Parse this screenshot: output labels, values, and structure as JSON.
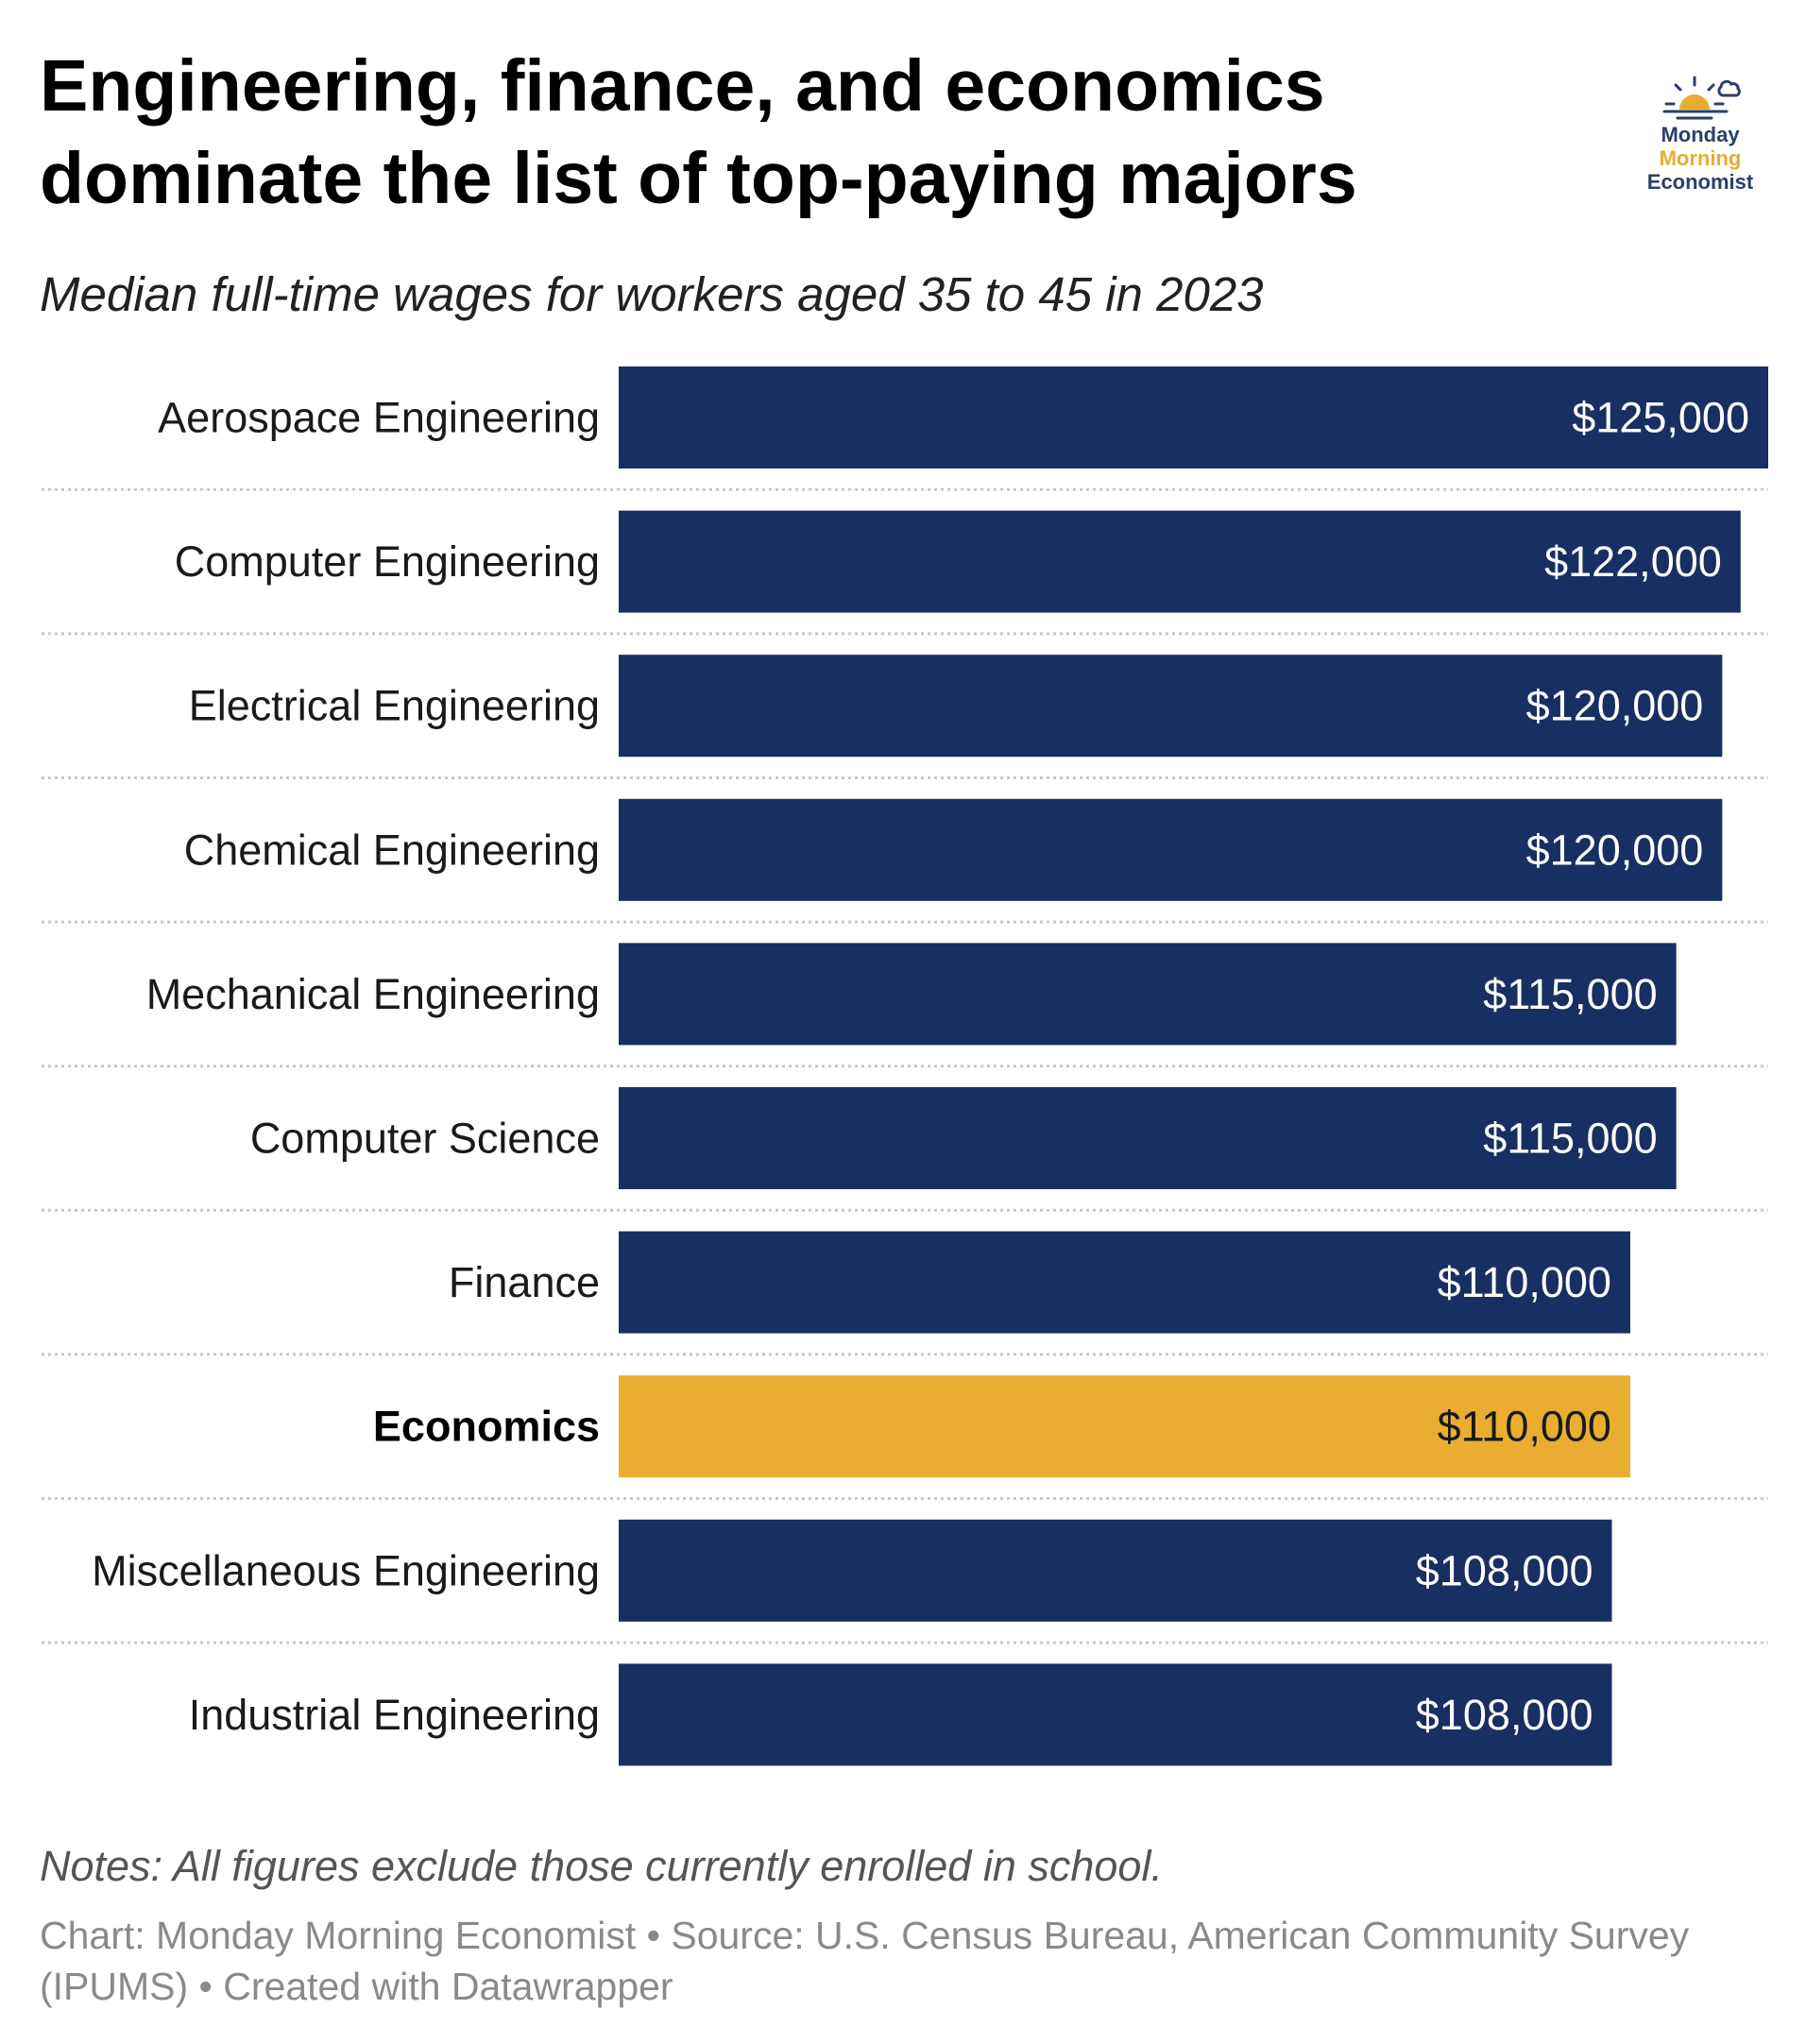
{
  "header": {
    "title": "Engineering, finance, and economics dominate the list of top-paying majors",
    "subtitle": "Median full-time wages for workers aged 35 to 45 in 2023"
  },
  "logo": {
    "line1": "Monday",
    "line2": "Morning",
    "line3": "Economist",
    "colors": {
      "navy": "#2b3f6b",
      "gold": "#e8ad2f"
    }
  },
  "footer": {
    "notes": "Notes: All figures exclude those currently enrolled in school.",
    "credit": "Chart: Monday Morning Economist • Source: U.S. Census Bureau, American Community Survey (IPUMS) • Created with Datawrapper"
  },
  "chart_data": {
    "type": "bar",
    "orientation": "horizontal",
    "categories": [
      "Aerospace Engineering",
      "Computer Engineering",
      "Electrical Engineering",
      "Chemical Engineering",
      "Mechanical Engineering",
      "Computer Science",
      "Finance",
      "Economics",
      "Miscellaneous Engineering",
      "Industrial Engineering"
    ],
    "values": [
      125000,
      122000,
      120000,
      120000,
      115000,
      115000,
      110000,
      110000,
      108000,
      108000
    ],
    "value_labels": [
      "$125,000",
      "$122,000",
      "$120,000",
      "$120,000",
      "$115,000",
      "$115,000",
      "$110,000",
      "$110,000",
      "$108,000",
      "$108,000"
    ],
    "highlight": "Economics",
    "xlim": [
      0,
      125000
    ],
    "colors": {
      "default": "#172f63",
      "highlight": "#e9ae31"
    },
    "grid": false
  }
}
